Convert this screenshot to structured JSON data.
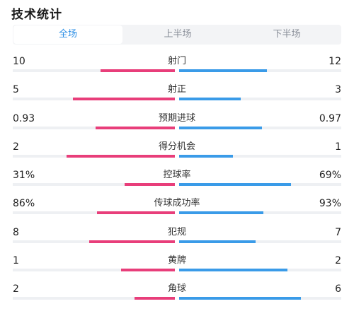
{
  "header": {
    "title": "技术统计"
  },
  "tabs": [
    {
      "label": "全场",
      "active": true
    },
    {
      "label": "上半场",
      "active": false
    },
    {
      "label": "下半场",
      "active": false
    }
  ],
  "colors": {
    "home": "#e83e7a",
    "away": "#3a9be8",
    "active_tab": "#2c8fe6"
  },
  "stats": [
    {
      "label": "射门",
      "left": "10",
      "right": "12",
      "left_fill": 0.46,
      "right_fill": 0.54
    },
    {
      "label": "射正",
      "left": "5",
      "right": "3",
      "left_fill": 0.63,
      "right_fill": 0.38
    },
    {
      "label": "预期进球",
      "left": "0.93",
      "right": "0.97",
      "left_fill": 0.49,
      "right_fill": 0.51
    },
    {
      "label": "得分机会",
      "left": "2",
      "right": "1",
      "left_fill": 0.67,
      "right_fill": 0.33
    },
    {
      "label": "控球率",
      "left": "31%",
      "right": "69%",
      "left_fill": 0.31,
      "right_fill": 0.69
    },
    {
      "label": "传球成功率",
      "left": "86%",
      "right": "93%",
      "left_fill": 0.48,
      "right_fill": 0.52
    },
    {
      "label": "犯规",
      "left": "8",
      "right": "7",
      "left_fill": 0.53,
      "right_fill": 0.47
    },
    {
      "label": "黄牌",
      "left": "1",
      "right": "2",
      "left_fill": 0.33,
      "right_fill": 0.67
    },
    {
      "label": "角球",
      "left": "2",
      "right": "6",
      "left_fill": 0.25,
      "right_fill": 0.75
    }
  ]
}
